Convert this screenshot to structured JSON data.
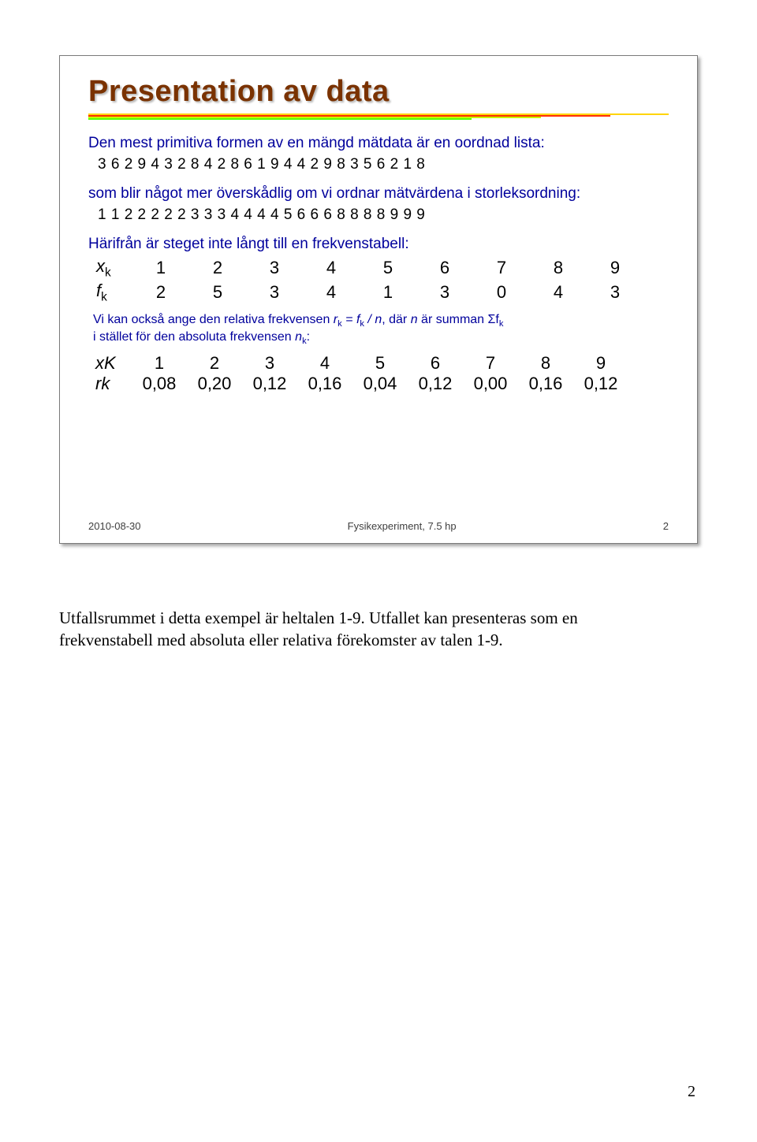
{
  "slide": {
    "title": "Presentation av data",
    "rule_colors": [
      "#ffd400",
      "#ff2e00",
      "#c8ff00",
      "#56ff00"
    ],
    "rule_widths_pct": [
      100,
      90,
      78,
      66
    ],
    "intro": "Den mest primitiva formen av en mängd mätdata är en oordnad lista:",
    "raw_seq": "3 6 2 9 4 3 2 8 4 2 8 6 1 9 4 4 2 9 8 3 5 6 2 1 8",
    "sorted_intro": "som blir något mer överskådlig om vi ordnar mätvärdena i storleksordning:",
    "sorted_seq": "1 1 2 2 2 2 2 3 3 3 4 4 4 4 5 6 6 6 8 8 8 8 9 9 9",
    "ftable_intro": "Härifrån är steget inte långt till en frekvenstabell:",
    "table1": {
      "row1_label_var": "x",
      "row1_label_sub": "k",
      "row1": [
        "1",
        "2",
        "3",
        "4",
        "5",
        "6",
        "7",
        "8",
        "9"
      ],
      "row2_label_var": "f",
      "row2_label_sub": "k",
      "row2": [
        "2",
        "5",
        "3",
        "4",
        "1",
        "3",
        "0",
        "4",
        "3"
      ]
    },
    "rel_note_1": "Vi kan också ange den relativa frekvensen ",
    "rel_note_eq": "r",
    "rel_note_eq_sub": "k",
    "rel_note_eq_mid": " = f",
    "rel_note_eq_sub2": "k",
    "rel_note_eq_end": " / n",
    "rel_note_2": ", där ",
    "rel_note_n": "n",
    "rel_note_3": " är summan Σf",
    "rel_note_3_sub": "k",
    "rel_note_line2a": "i stället för den absoluta frekvensen ",
    "rel_note_line2_var": "n",
    "rel_note_line2_sub": "k",
    "rel_note_line2b": ":",
    "table2": {
      "row1_label_var": "x",
      "row1_label_sub": "K",
      "row1": [
        "1",
        "2",
        "3",
        "4",
        "5",
        "6",
        "7",
        "8",
        "9"
      ],
      "row2_label_var": "r",
      "row2_label_sub": "k",
      "row2": [
        "0,08",
        "0,20",
        "0,12",
        "0,16",
        "0,04",
        "0,12",
        "0,00",
        "0,16",
        "0,12"
      ]
    },
    "footer": {
      "date": "2010-08-30",
      "center": "Fysikexperiment, 7.5 hp",
      "num": "2"
    },
    "text_color": "#00009c",
    "title_color": "#7a3200"
  },
  "caption": {
    "line1": "Utfallsrummet i detta exempel är heltalen 1-9. Utfallet kan presenteras som en",
    "line2": "frekvenstabell med absoluta eller relativa förekomster av talen 1-9."
  },
  "page_number": "2"
}
